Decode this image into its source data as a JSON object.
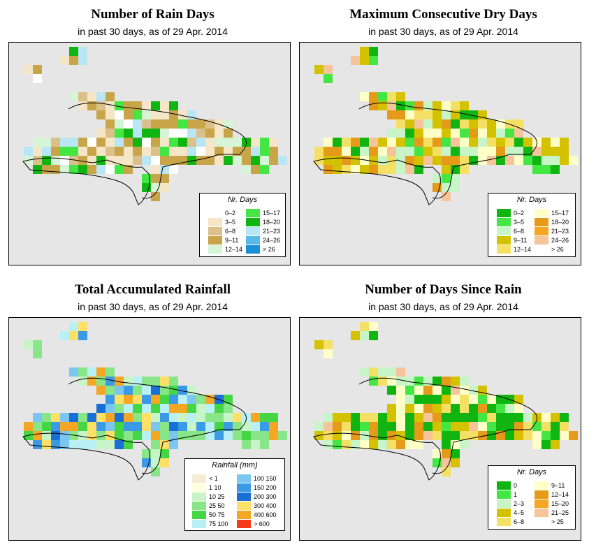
{
  "panels": [
    {
      "id": "rain-days",
      "title": "Number of Rain Days",
      "subtitle": "in past 30 days, as of  29 Apr. 2014",
      "legend": {
        "title": "Nr. Days",
        "items": [
          {
            "label": "0–2",
            "color": "#ffffff"
          },
          {
            "label": "3–5",
            "color": "#f5e6c8"
          },
          {
            "label": "6–8",
            "color": "#dcc08c"
          },
          {
            "label": "9–11",
            "color": "#c9a54a"
          },
          {
            "label": "12–14",
            "color": "#d6f5d6"
          },
          {
            "label": "15–17",
            "color": "#44e644"
          },
          {
            "label": "18–20",
            "color": "#11b511"
          },
          {
            "label": "21–23",
            "color": "#b8e6f5"
          },
          {
            "label": "24–26",
            "color": "#5ab8e6"
          },
          {
            "label": "> 26",
            "color": "#1a8fd6"
          }
        ]
      }
    },
    {
      "id": "dry-days",
      "title": "Maximum Consecutive Dry Days",
      "subtitle": "in past 30 days, as of  29 Apr. 2014",
      "legend": {
        "title": "Nr. Days",
        "items": [
          {
            "label": "0–2",
            "color": "#11b511"
          },
          {
            "label": "3–5",
            "color": "#44e644"
          },
          {
            "label": "6–8",
            "color": "#c8f5c8"
          },
          {
            "label": "9–11",
            "color": "#d4c200"
          },
          {
            "label": "12–14",
            "color": "#f5e066"
          },
          {
            "label": "15–17",
            "color": "#ffffc8"
          },
          {
            "label": "18–20",
            "color": "#e69a1a"
          },
          {
            "label": "21–23",
            "color": "#f5a623"
          },
          {
            "label": "24–26",
            "color": "#f5c49a"
          },
          {
            "label": "> 26",
            "color": "#ffffff"
          }
        ]
      }
    },
    {
      "id": "total-rainfall",
      "title": "Total Accumulated Rainfall",
      "subtitle": "in past 30 days, as of  29 Apr. 2014",
      "legend": {
        "title": "Rainfall (mm)",
        "items": [
          {
            "label": "< 1",
            "color": "#f5ecd6"
          },
          {
            "label": "1   10",
            "color": "#ffffe0"
          },
          {
            "label": "10   25",
            "color": "#c8f5c8"
          },
          {
            "label": "25   50",
            "color": "#88e688"
          },
          {
            "label": "50   75",
            "color": "#44d644"
          },
          {
            "label": "75  100",
            "color": "#b8f0f5"
          },
          {
            "label": "100  150",
            "color": "#7ac6f0"
          },
          {
            "label": "150  200",
            "color": "#3a9ae6"
          },
          {
            "label": "200  300",
            "color": "#1a6fd6"
          },
          {
            "label": "300  400",
            "color": "#ffe066"
          },
          {
            "label": "400  600",
            "color": "#f5a623"
          },
          {
            "label": "> 600",
            "color": "#f53a1a"
          }
        ]
      }
    },
    {
      "id": "days-since-rain",
      "title": "Number of Days Since Rain",
      "subtitle": "in past 30 days, as of  29 Apr. 2014",
      "legend": {
        "title": "Nr. Days",
        "items": [
          {
            "label": "0",
            "color": "#11b511"
          },
          {
            "label": "1",
            "color": "#44e644"
          },
          {
            "label": "2–3",
            "color": "#c8f5c8"
          },
          {
            "label": "4–5",
            "color": "#d4c200"
          },
          {
            "label": "6–8",
            "color": "#f5e066"
          },
          {
            "label": "9–11",
            "color": "#ffffc8"
          },
          {
            "label": "12–14",
            "color": "#e69a1a"
          },
          {
            "label": "15–20",
            "color": "#f5a623"
          },
          {
            "label": "21–25",
            "color": "#f5c49a"
          },
          {
            "label": "> 25",
            "color": "#ffffff"
          }
        ]
      }
    }
  ]
}
